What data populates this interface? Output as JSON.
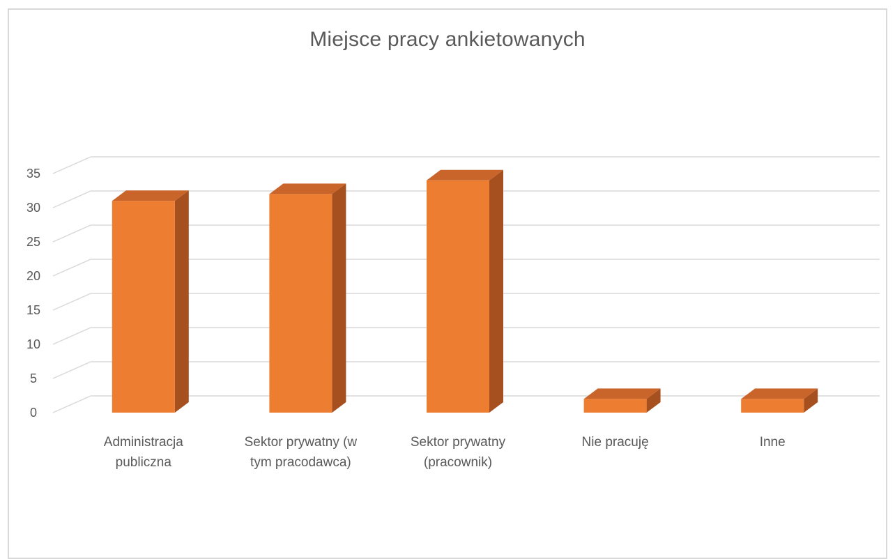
{
  "chart_data": {
    "type": "bar",
    "title": "Miejsce pracy ankietowanych",
    "xlabel": "",
    "ylabel": "",
    "categories": [
      "Administracja publiczna",
      "Sektor prywatny (w tym pracodawca)",
      "Sektor prywatny (pracownik)",
      "Nie pracuję",
      "Inne"
    ],
    "category_labels": [
      "Administracja\npubliczna",
      "Sektor prywatny (w\ntym pracodawca)",
      "Sektor prywatny\n(pracownik)",
      "Nie pracuję",
      "Inne"
    ],
    "values": [
      31,
      32,
      34,
      2,
      2
    ],
    "ylim": [
      0,
      35
    ],
    "yticks": [
      0,
      5,
      10,
      15,
      20,
      25,
      30,
      35
    ],
    "grid": true,
    "legend": "none",
    "style": "3d-column"
  },
  "colors": {
    "bar_front": "#ED7D31",
    "bar_side": "#A5501E",
    "bar_top": "#C9642A",
    "grid": "#d9d9d9",
    "text": "#595959"
  }
}
